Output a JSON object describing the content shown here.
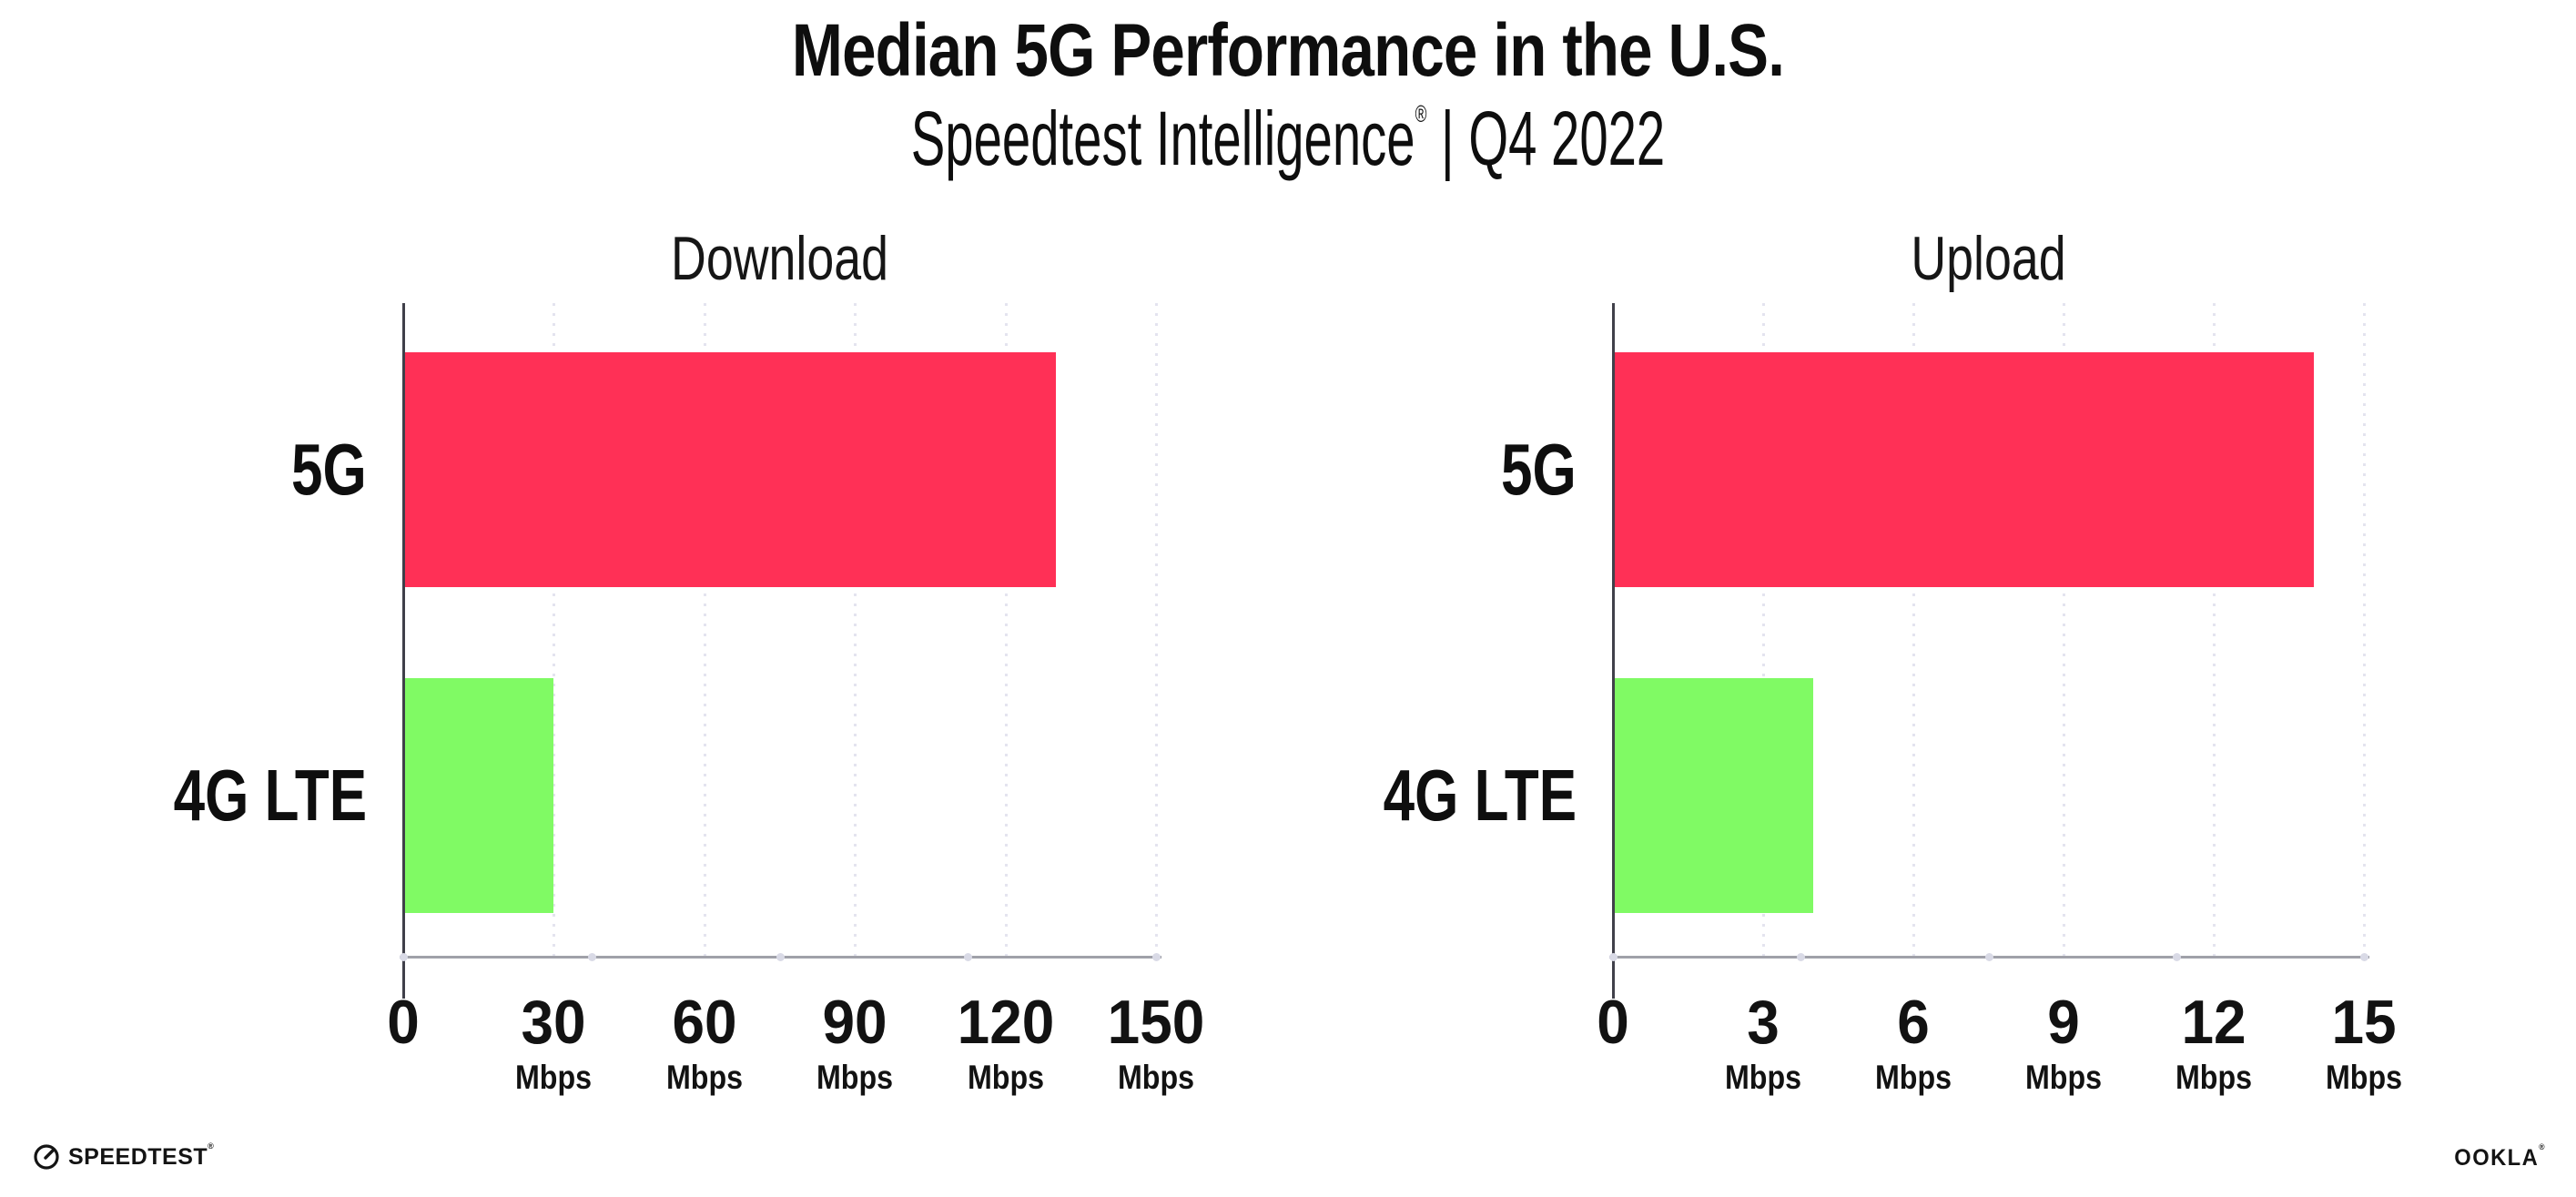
{
  "page": {
    "background": "#FFFFFF"
  },
  "header": {
    "title": "Median 5G Performance in the U.S.",
    "subtitle_brand": "Speedtest Intelligence",
    "subtitle_registered": "®",
    "subtitle_rest": " | Q4 2022"
  },
  "chart_data": [
    {
      "type": "bar",
      "orientation": "horizontal",
      "title": "Download",
      "categories": [
        "5G",
        "4G LTE"
      ],
      "values": [
        130,
        30
      ],
      "unit": "Mbps",
      "xlabel": "",
      "xlim": [
        0,
        150
      ],
      "xticks": [
        0,
        30,
        60,
        90,
        120,
        150
      ],
      "bar_colors": [
        "#FF3056",
        "#80FA64"
      ],
      "grid": "vertical-dotted",
      "legend": "none"
    },
    {
      "type": "bar",
      "orientation": "horizontal",
      "title": "Upload",
      "categories": [
        "5G",
        "4G LTE"
      ],
      "values": [
        14,
        4
      ],
      "unit": "Mbps",
      "xlabel": "",
      "xlim": [
        0,
        15
      ],
      "xticks": [
        0,
        3,
        6,
        9,
        12,
        15
      ],
      "bar_colors": [
        "#FF3056",
        "#80FA64"
      ],
      "grid": "vertical-dotted",
      "legend": "none"
    }
  ],
  "footer": {
    "speedtest_label": "SPEEDTEST",
    "speedtest_registered": "®",
    "ookla_label": "OOKLA",
    "ookla_registered": "®"
  },
  "colors": {
    "bar_5g": "#FF3056",
    "bar_4g_lte": "#80FA64",
    "gridline_dots": "#E4E4EF",
    "x_axis_line": "#A0A1A9",
    "y_axis_line": "#40404A",
    "text": "#121212"
  }
}
